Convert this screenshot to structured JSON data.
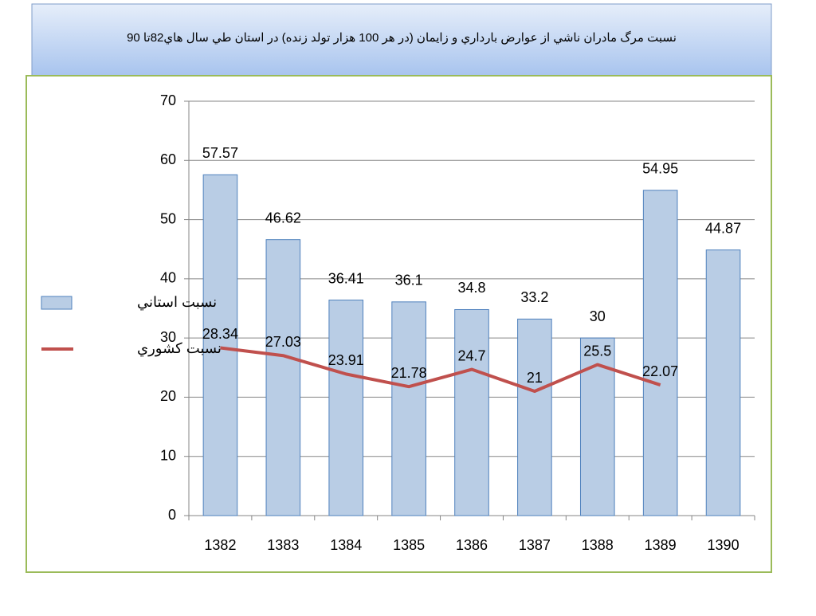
{
  "chart_data": {
    "type": "bar",
    "title": "نسبت مرگ مادران ناشي از عوارض بارداري و زايمان (در هر 100 هزار تولد زنده) در استان طي سال هاي82تا 90",
    "categories": [
      "1382",
      "1383",
      "1384",
      "1385",
      "1386",
      "1387",
      "1388",
      "1389",
      "1390"
    ],
    "series": [
      {
        "name": "نسبت استاني",
        "type": "bar",
        "color": "#b9cde5",
        "values": [
          57.57,
          46.62,
          36.41,
          36.1,
          34.8,
          33.2,
          30,
          54.95,
          44.87
        ]
      },
      {
        "name": "نسبت کشوري",
        "type": "line",
        "color": "#c0504d",
        "values": [
          28.34,
          27.03,
          23.91,
          21.78,
          24.7,
          21,
          25.5,
          22.07,
          null
        ]
      }
    ],
    "ylim": [
      0,
      70
    ],
    "yticks": [
      0,
      10,
      20,
      30,
      40,
      50,
      60,
      70
    ],
    "grid": true,
    "legend": "left"
  }
}
